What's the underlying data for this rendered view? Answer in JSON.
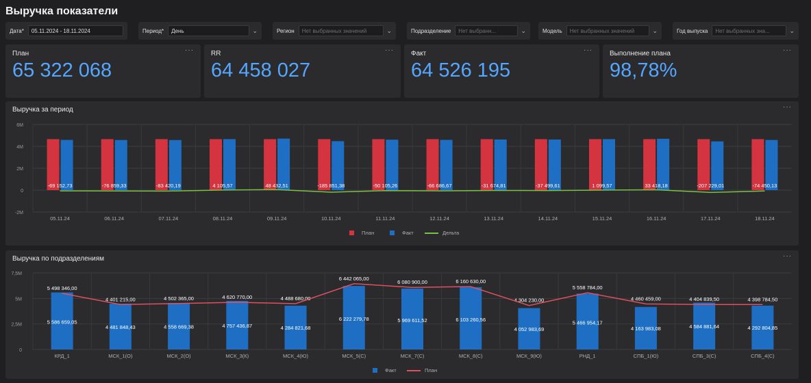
{
  "title": "Выручка показатели",
  "filters": [
    {
      "label": "Дата*",
      "value": "05.11.2024 - 18.11.2024",
      "placeholder": false
    },
    {
      "label": "Период*",
      "value": "День",
      "placeholder": false
    },
    {
      "label": "Регион",
      "value": "Нет выбранных значений",
      "placeholder": true
    },
    {
      "label": "Подразделение",
      "value": "Нет выбранн...",
      "placeholder": true
    },
    {
      "label": "Модель",
      "value": "Нет выбранных значений",
      "placeholder": true
    },
    {
      "label": "Год выпуска",
      "value": "Нет выбранных зна...",
      "placeholder": true
    }
  ],
  "kpis": [
    {
      "label": "План",
      "value": "65 322 068"
    },
    {
      "label": "RR",
      "value": "64 458 027"
    },
    {
      "label": "Факт",
      "value": "64 526 195"
    },
    {
      "label": "Выполнение плана",
      "value": "98,78%"
    }
  ],
  "menu_glyph": "···",
  "colors": {
    "plan": "#d4343f",
    "fact": "#1e6fc4",
    "delta": "#7cc242",
    "plan_line": "#e05060",
    "kpi": "#55a6ff"
  },
  "chart_data": [
    {
      "type": "bar",
      "title": "Выручка за период",
      "categories": [
        "05.11.24",
        "06.11.24",
        "07.11.24",
        "08.11.24",
        "09.11.24",
        "10.11.24",
        "11.11.24",
        "12.11.24",
        "13.11.24",
        "14.11.24",
        "15.11.24",
        "16.11.24",
        "17.11.24",
        "18.11.24"
      ],
      "yticks": [
        {
          "v": 6000000,
          "label": "6M"
        },
        {
          "v": 4000000,
          "label": "4M"
        },
        {
          "v": 2000000,
          "label": "2M"
        },
        {
          "v": 0,
          "label": "0"
        },
        {
          "v": -2000000,
          "label": "-2M"
        }
      ],
      "ylim": [
        -2000000,
        6000000
      ],
      "series": [
        {
          "name": "План",
          "type": "bar",
          "values": [
            4660000,
            4660000,
            4660000,
            4660000,
            4660000,
            4660000,
            4660000,
            4660000,
            4660000,
            4660000,
            4660000,
            4660000,
            4660000,
            4660000
          ]
        },
        {
          "name": "Факт",
          "type": "bar",
          "values": [
            4590000,
            4580000,
            4576000,
            4664000,
            4708000,
            4474000,
            4610000,
            4593000,
            4628000,
            4622000,
            4661000,
            4693000,
            4453000,
            4586000
          ]
        },
        {
          "name": "Дельта",
          "type": "line",
          "values": [
            -69152.73,
            -76859.33,
            -83420.19,
            4105.57,
            48432.51,
            -185851.38,
            -50105.26,
            -66686.67,
            -31674.81,
            -37499.61,
            1099.57,
            33418.18,
            -207229.01,
            -74450.13
          ]
        }
      ],
      "delta_labels": [
        "-69 152,73",
        "-76 859,33",
        "-83 420,19",
        "4 105,57",
        "48 432,51",
        "-185 851,38",
        "-50 105,26",
        "-66 686,67",
        "-31 674,81",
        "-37 499,61",
        "1 099,57",
        "33 418,18",
        "-207 229,01",
        "-74 450,13"
      ],
      "legend": [
        "План",
        "Факт",
        "Дельта"
      ]
    },
    {
      "type": "bar",
      "title": "Выручка по подразделениям",
      "categories": [
        "КРД_1",
        "МСК_1(О)",
        "МСК_2(О)",
        "МСК_3(К)",
        "МСК_4(Ю)",
        "МСК_5(С)",
        "МСК_7(С)",
        "МСК_8(С)",
        "МСК_9(Ю)",
        "РНД_1",
        "СПБ_1(Ю)",
        "СПБ_3(С)",
        "СПБ_4(С)"
      ],
      "yticks": [
        {
          "v": 7500000,
          "label": "7,5M"
        },
        {
          "v": 5000000,
          "label": "5M"
        },
        {
          "v": 2500000,
          "label": "2,5M"
        },
        {
          "v": 0,
          "label": "0"
        }
      ],
      "ylim": [
        0,
        7500000
      ],
      "series": [
        {
          "name": "Факт",
          "type": "bar",
          "values": [
            5586659.05,
            4481848.43,
            4558669.38,
            4757436.87,
            4284821.68,
            6222279.78,
            5969611.52,
            6103260.56,
            4052983.69,
            5466954.17,
            4163983.08,
            4584881.64,
            4292804.85
          ]
        },
        {
          "name": "План",
          "type": "line",
          "values": [
            5498346.0,
            4401215.0,
            4502365.0,
            4620770.0,
            4488680.0,
            6442065.0,
            6080900.0,
            6160630.0,
            4304230.0,
            5558784.0,
            4460459.0,
            4404839.5,
            4398784.5
          ]
        }
      ],
      "fact_labels": [
        "5 586 659,05",
        "4 481 848,43",
        "4 558 669,38",
        "4 757 436,87",
        "4 284 821,68",
        "6 222 279,78",
        "5 969 611,52",
        "6 103 260,56",
        "4 052 983,69",
        "5 466 954,17",
        "4 163 983,08",
        "4 584 881,64",
        "4 292 804,85"
      ],
      "plan_labels": [
        "5 498 346,00",
        "4 401 215,00",
        "4 502 365,00",
        "4 620 770,00",
        "4 488 680,00",
        "6 442 065,00",
        "6 080 900,00",
        "6 160 630,00",
        "4 304 230,00",
        "5 558 784,00",
        "4 460 459,00",
        "4 404 839,50",
        "4 398 784,50"
      ],
      "legend": [
        "Факт",
        "План"
      ]
    }
  ]
}
